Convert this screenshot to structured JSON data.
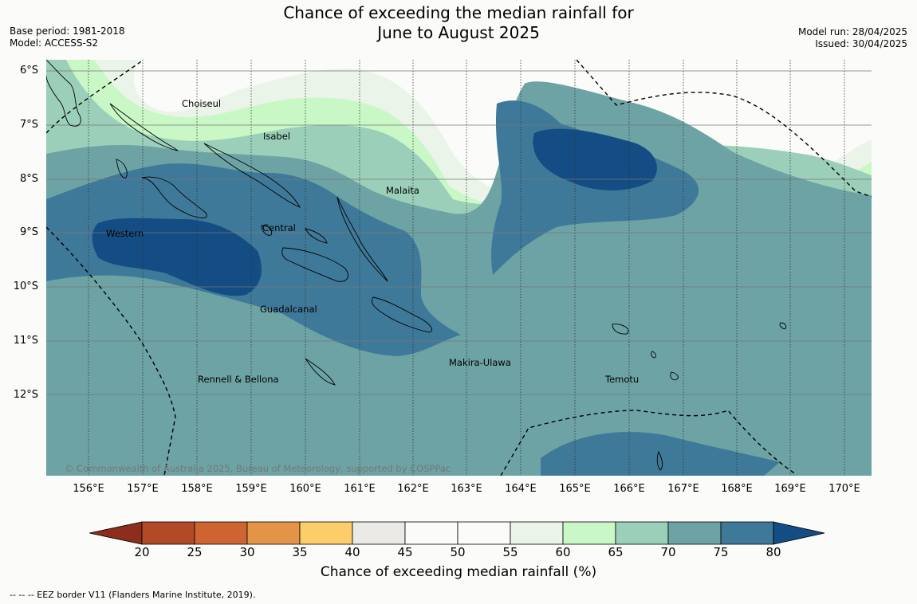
{
  "title": {
    "line1": "Chance of exceeding the median rainfall for",
    "line2": "June to August 2025"
  },
  "meta_left": {
    "base_period": "Base period: 1981-2018",
    "model": "Model: ACCESS-S2"
  },
  "meta_right": {
    "model_run": "Model run: 28/04/2025",
    "issued": "Issued: 30/04/2025"
  },
  "map": {
    "lat_labels": [
      "6°S",
      "7°S",
      "8°S",
      "9°S",
      "10°S",
      "11°S",
      "12°S"
    ],
    "lon_labels": [
      "156°E",
      "157°E",
      "158°E",
      "159°E",
      "160°E",
      "161°E",
      "162°E",
      "163°E",
      "164°E",
      "165°E",
      "166°E",
      "167°E",
      "168°E",
      "169°E",
      "170°E"
    ],
    "places": {
      "choiseul": "Choiseul",
      "isabel": "Isabel",
      "malaita": "Malaita",
      "western": "Western",
      "central": "Central",
      "guadalcanal": "Guadalcanal",
      "makira": "Makira-Ulawa",
      "temotu": "Temotu",
      "rennell": "Rennell & Bellona"
    },
    "copyright": "© Commonwealth of Australia 2025, Bureau of Meteorology, supported by COSPPac"
  },
  "colorbar": {
    "ticks": [
      "20",
      "25",
      "30",
      "35",
      "40",
      "45",
      "50",
      "55",
      "60",
      "65",
      "70",
      "75",
      "80"
    ],
    "colors": {
      "below_20": "#8c2d1e",
      "20_25": "#b24a28",
      "25_30": "#cd6432",
      "30_35": "#e49447",
      "35_40": "#fdcd6a",
      "40_45": "#ebeae6",
      "45_50": "#fbfcf9",
      "50_55": "#fbfcf9",
      "55_60": "#eaf4e8",
      "60_65": "#c9f7c6",
      "65_70": "#9ccfb9",
      "70_75": "#6da3a5",
      "75_80": "#3f7999",
      "above_80": "#134d84"
    },
    "label": "Chance of exceeding median rainfall (%)"
  },
  "footer": {
    "eez": "--  --  -- EEZ border V11 (Flanders Marine Institute, 2019)."
  }
}
